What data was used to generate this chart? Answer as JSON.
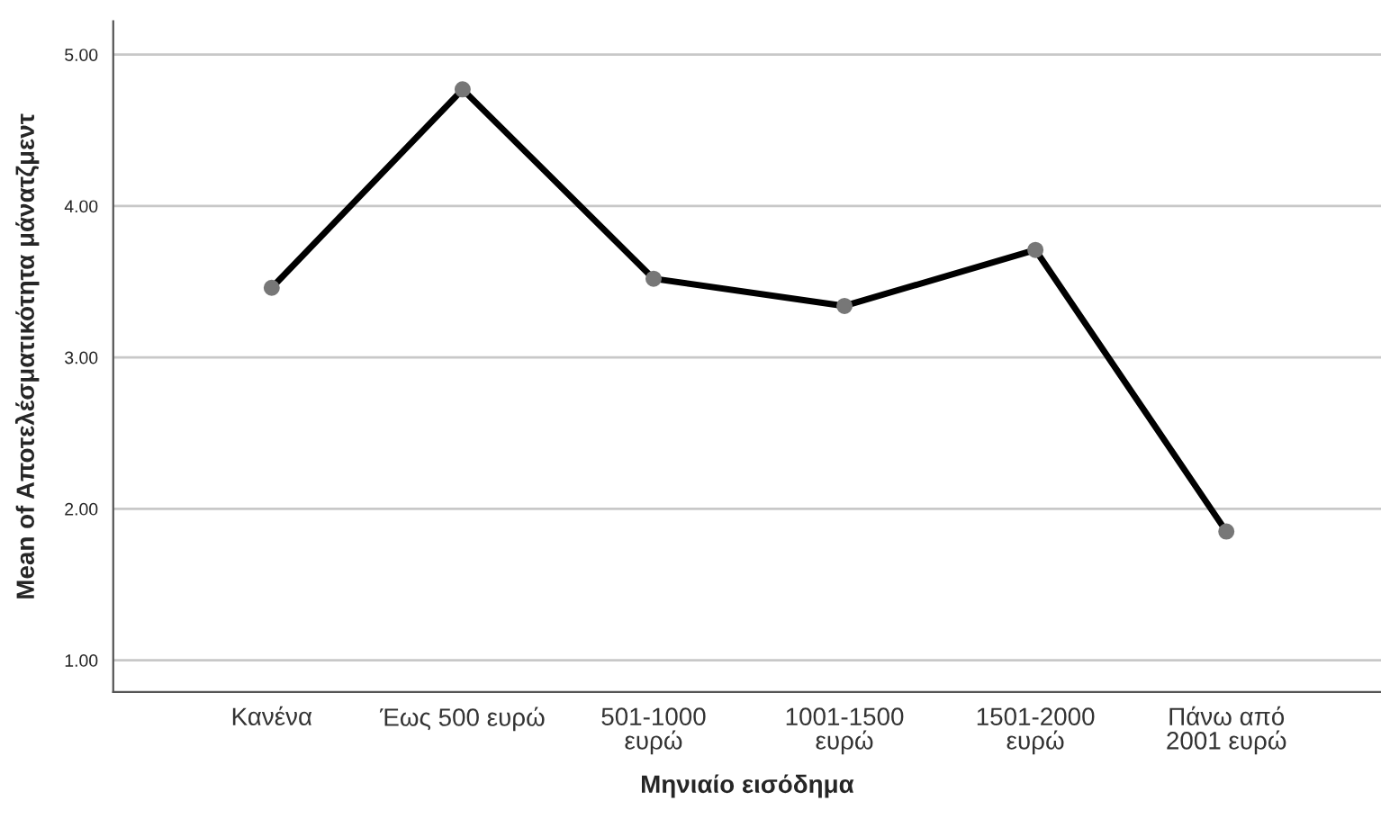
{
  "chart_data": {
    "type": "line",
    "xlabel": "Μηνιαίο εισόδημα",
    "ylabel": "Mean of Αποτελέσματικότητα μάνατζμεντ",
    "categories": [
      "Κανένα",
      "Έως 500 ευρώ",
      "501-1000\nευρώ",
      "1001-1500\nευρώ",
      "1501-2000\nευρώ",
      "Πάνω από\n2001 ευρώ"
    ],
    "series": [
      {
        "color": "#000000",
        "values": [
          3.46,
          4.77,
          3.52,
          3.34,
          3.71,
          1.85
        ]
      }
    ],
    "ylim": [
      0.79,
      5.22
    ],
    "yticks": [
      {
        "value": 1,
        "label": "1.00"
      },
      {
        "value": 2,
        "label": "2.00"
      },
      {
        "value": 3,
        "label": "3.00"
      },
      {
        "value": 4,
        "label": "4.00"
      },
      {
        "value": 5,
        "label": "5.00"
      }
    ],
    "grid": "y",
    "marker": "circle",
    "line_style": "solid",
    "legend": false
  }
}
